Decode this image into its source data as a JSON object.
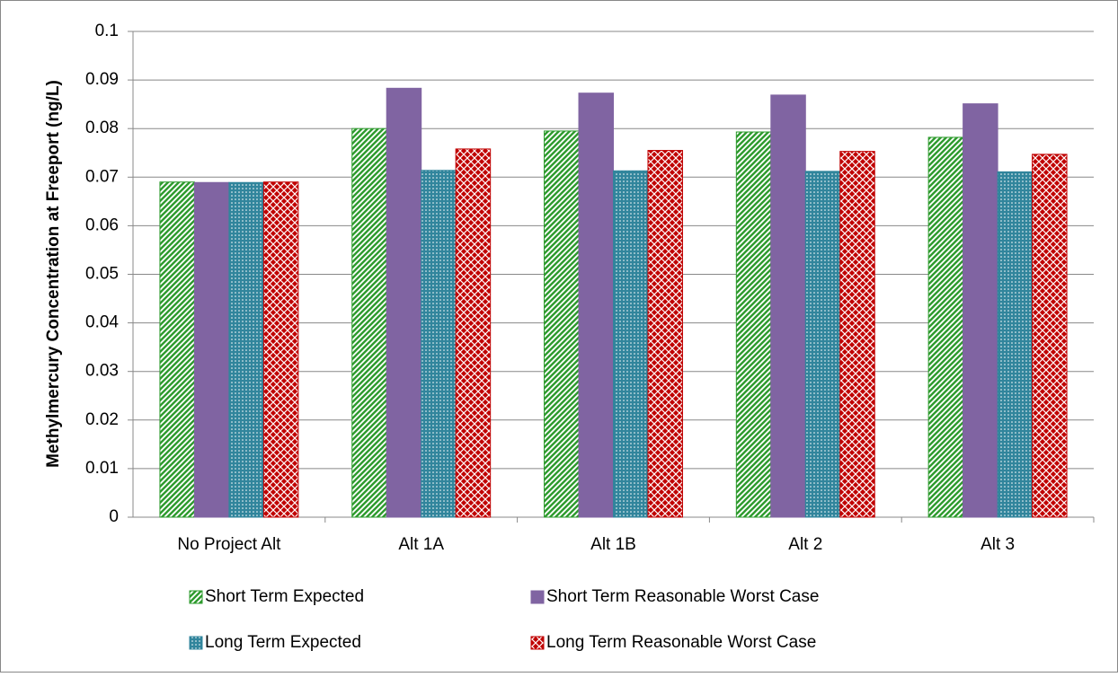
{
  "chart_data": {
    "type": "bar",
    "y_label": "Methylmercury Concentration at Freeport (ng/L)",
    "categories": [
      "No Project Alt",
      "Alt 1A",
      "Alt 1B",
      "Alt 2",
      "Alt 3"
    ],
    "series": [
      {
        "name": "Short Term Expected",
        "color": "#2e9b2e",
        "values": [
          0.069,
          0.08,
          0.0795,
          0.0793,
          0.0782
        ]
      },
      {
        "name": "Short Term Reasonable Worst Case",
        "color": "#8064a2",
        "values": [
          0.0689,
          0.0883,
          0.0873,
          0.0869,
          0.0851
        ]
      },
      {
        "name": "Long Term Expected",
        "color": "#31859c",
        "values": [
          0.0689,
          0.0714,
          0.0713,
          0.0712,
          0.0711
        ]
      },
      {
        "name": "Long Term Reasonable Worst Case",
        "color": "#c00000",
        "values": [
          0.069,
          0.0758,
          0.0755,
          0.0753,
          0.0747
        ]
      }
    ],
    "ylim": [
      0,
      0.1
    ],
    "yticks": [
      0,
      0.01,
      0.02,
      0.03,
      0.04,
      0.05,
      0.06,
      0.07,
      0.08,
      0.09,
      0.1
    ],
    "grid": true,
    "legend": "bottom"
  }
}
